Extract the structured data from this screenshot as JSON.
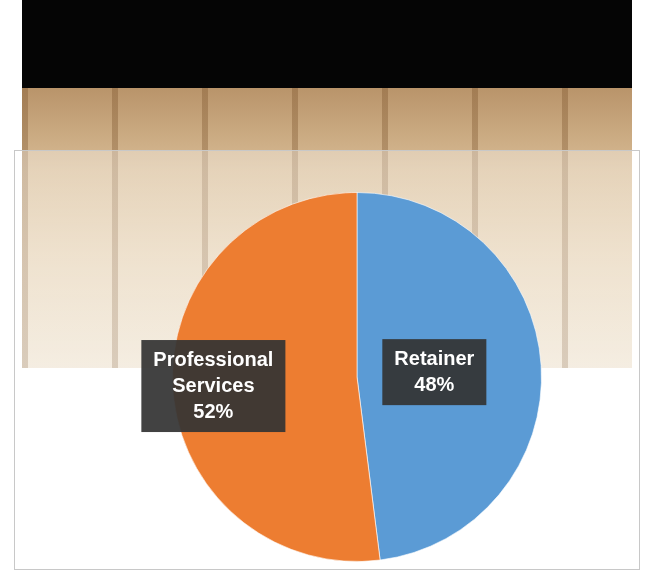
{
  "chart_data": {
    "type": "pie",
    "categories": [
      "Retainer",
      "Professional Services"
    ],
    "values": [
      48,
      52
    ],
    "value_labels": [
      "48%",
      "52%"
    ],
    "colors": [
      "#5b9bd5",
      "#ed7d31"
    ],
    "data_labels": true
  }
}
